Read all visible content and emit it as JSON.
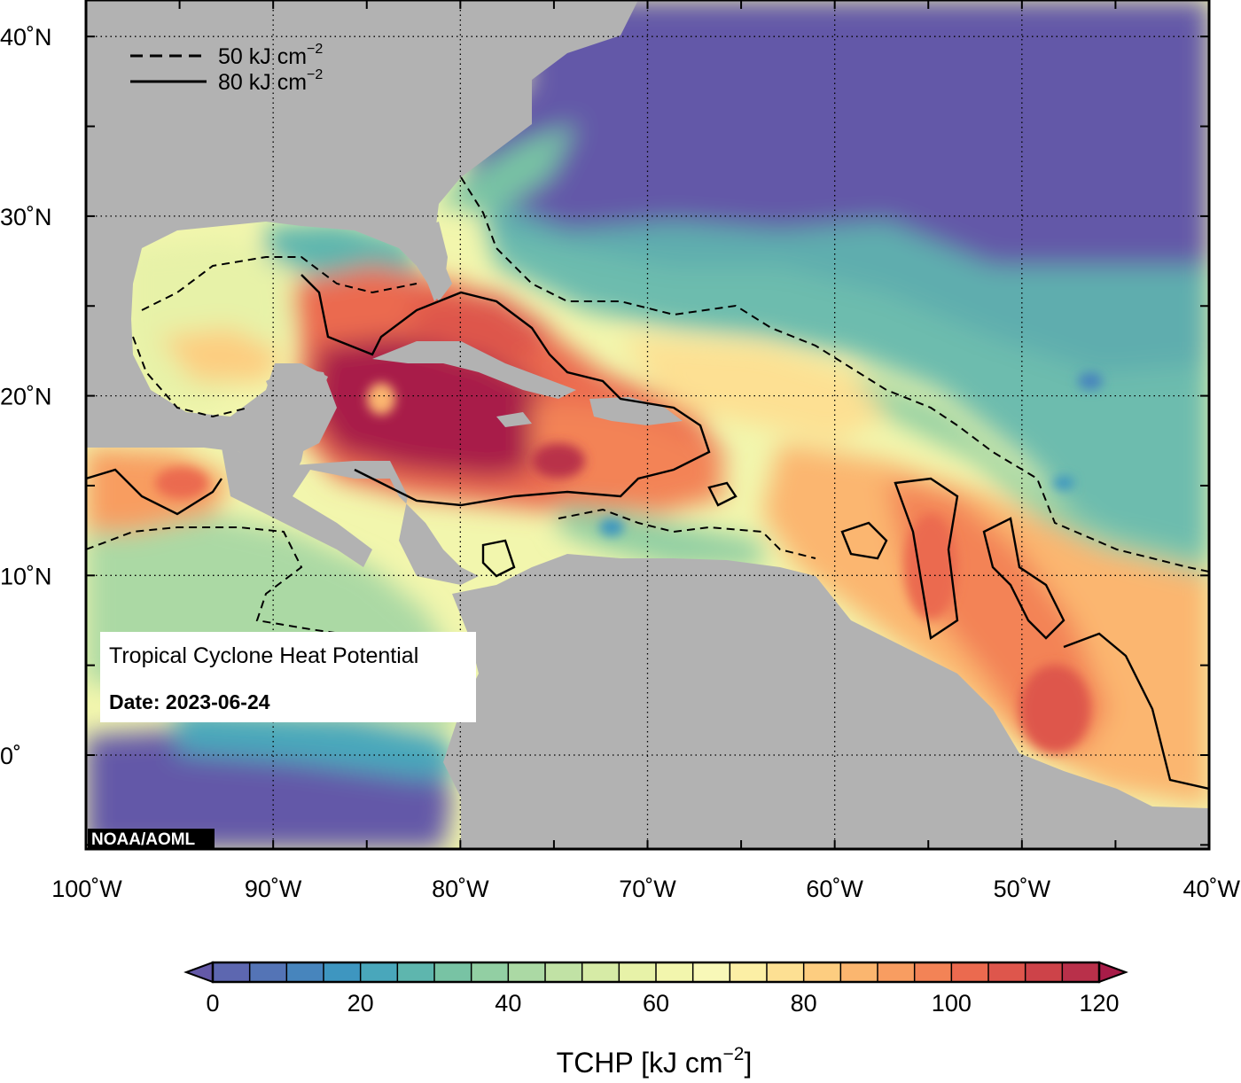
{
  "map": {
    "lat_ticks": [
      {
        "value": 40,
        "label": "40˚N"
      },
      {
        "value": 30,
        "label": "30˚N"
      },
      {
        "value": 20,
        "label": "20˚N"
      },
      {
        "value": 10,
        "label": "10˚N"
      },
      {
        "value": 0,
        "label": "0˚"
      }
    ],
    "lon_ticks": [
      {
        "value": -100,
        "label": "100˚W"
      },
      {
        "value": -90,
        "label": "90˚W"
      },
      {
        "value": -80,
        "label": "80˚W"
      },
      {
        "value": -70,
        "label": "70˚W"
      },
      {
        "value": -60,
        "label": "60˚W"
      },
      {
        "value": -50,
        "label": "50˚W"
      },
      {
        "value": -40,
        "label": "40˚W"
      }
    ],
    "land_color": "#b2b2b2",
    "grid": "dotted"
  },
  "legend": {
    "dashed_label": "50 kJ cm",
    "solid_label": "80 kJ cm",
    "exponent": "−2"
  },
  "info_box": {
    "title": "Tropical Cyclone Heat Potential",
    "date_label": "Date: 2023-06-24"
  },
  "credit": "NOAA/AOML",
  "colorbar": {
    "min": 0,
    "max": 120,
    "step": 5,
    "ticks": [
      "0",
      "20",
      "40",
      "60",
      "80",
      "100",
      "120"
    ],
    "label_prefix": "TCHP [kJ cm",
    "label_exponent": "−2",
    "label_suffix": "]",
    "colors": [
      "#6459a8",
      "#5d67b0",
      "#5474b6",
      "#4785bd",
      "#3e96c0",
      "#49a7bb",
      "#5eb6ae",
      "#78c3a4",
      "#92cfa3",
      "#abd9a4",
      "#c1e2a5",
      "#d6eba6",
      "#e7f2a8",
      "#f2f6ad",
      "#f8f8b8",
      "#fcefa5",
      "#fde093",
      "#fdcd80",
      "#fbb66f",
      "#f89d61",
      "#f38356",
      "#eb6a4f",
      "#de564c",
      "#cd4349",
      "#b9304a",
      "#a81c48"
    ]
  }
}
